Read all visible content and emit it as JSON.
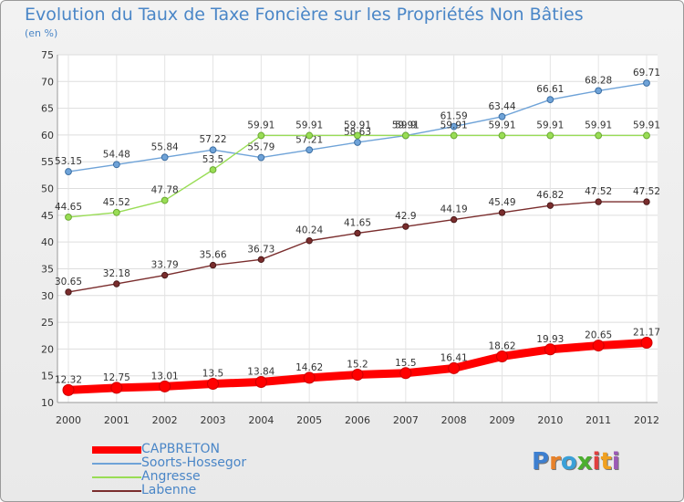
{
  "chart_data": {
    "type": "line",
    "title": "Evolution du Taux de Taxe Foncière sur les Propriétés Non Bâties",
    "subtitle": "(en %)",
    "x": [
      "2000",
      "2001",
      "2002",
      "2003",
      "2004",
      "2005",
      "2006",
      "2007",
      "2008",
      "2009",
      "2010",
      "2011",
      "2012"
    ],
    "ylim": [
      10,
      75
    ],
    "yticks": [
      10,
      15,
      20,
      25,
      30,
      35,
      40,
      45,
      50,
      55,
      60,
      65,
      70,
      75
    ],
    "grid": true,
    "legend_position": "bottom-left",
    "series": [
      {
        "name": "CAPBRETON",
        "color": "#ff0000",
        "labels": [
          "12.32",
          "12.75",
          "13.01",
          "13.5",
          "13.84",
          "14.62",
          "15.2",
          "15.5",
          "16.41",
          "18.62",
          "19.93",
          "20.65",
          "21.17"
        ],
        "values": [
          12.32,
          12.75,
          13.01,
          13.5,
          13.84,
          14.62,
          15.2,
          15.5,
          16.41,
          18.62,
          19.93,
          20.65,
          21.17
        ]
      },
      {
        "name": "Soorts-Hossegor",
        "color": "#6fa3d8",
        "labels": [
          "53.15",
          "54.48",
          "55.84",
          "57.22",
          "55.79",
          "57.21",
          "58.63",
          "59.9",
          "61.59",
          "63.44",
          "66.61",
          "68.28",
          "69.71"
        ],
        "values": [
          53.15,
          54.48,
          55.84,
          57.22,
          55.79,
          57.21,
          58.63,
          59.9,
          61.59,
          63.44,
          66.61,
          68.28,
          69.71
        ]
      },
      {
        "name": "Angresse",
        "color": "#99dd55",
        "labels": [
          "44.65",
          "45.52",
          "47.78",
          "53.5",
          "59.91",
          "59.91",
          "59.91",
          "59.91",
          "59.91",
          "59.91",
          "59.91",
          "59.91",
          "59.91"
        ],
        "values": [
          44.65,
          45.52,
          47.78,
          53.5,
          59.91,
          59.91,
          59.91,
          59.91,
          59.91,
          59.91,
          59.91,
          59.91,
          59.91
        ]
      },
      {
        "name": "Labenne",
        "color": "#7a2d2d",
        "labels": [
          "30.65",
          "32.18",
          "33.79",
          "35.66",
          "36.73",
          "40.24",
          "41.65",
          "42.9",
          "44.19",
          "45.49",
          "46.82",
          "47.52",
          "47.52"
        ],
        "values": [
          30.65,
          32.18,
          33.79,
          35.66,
          36.73,
          40.24,
          41.65,
          42.9,
          44.19,
          45.49,
          46.82,
          47.52,
          47.52
        ]
      }
    ]
  },
  "logo": {
    "text": "Proxiti",
    "letters": [
      "P",
      "r",
      "o",
      "x",
      "i",
      "t",
      "i"
    ],
    "colors": [
      "#3d7fd0",
      "#e8822a",
      "#3aa0d8",
      "#4caf2f",
      "#e04040",
      "#f0a020",
      "#9b59b6"
    ]
  }
}
